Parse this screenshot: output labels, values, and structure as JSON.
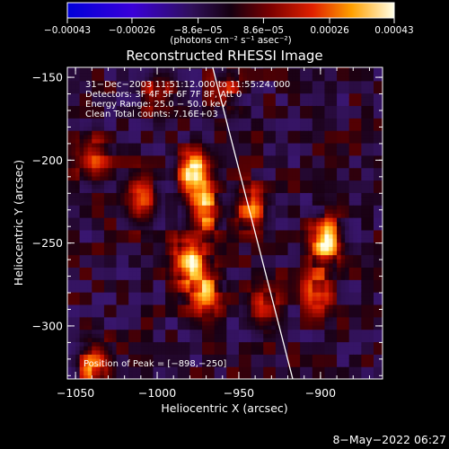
{
  "chart_data": {
    "type": "heatmap",
    "title": "Reconstructed RHESSI Image",
    "xlabel": "Heliocentric X (arcsec)",
    "ylabel": "Heliocentric Y (arcsec)",
    "xlim": [
      -1055,
      -862
    ],
    "ylim": [
      -332,
      -144
    ],
    "xticks": [
      -1050,
      -1000,
      -950,
      -900
    ],
    "xtick_labels": [
      "−1050",
      "−1000",
      "−950",
      "−900"
    ],
    "yticks": [
      -150,
      -200,
      -250,
      -300
    ],
    "ytick_labels": [
      "−150",
      "−200",
      "−250",
      "−300"
    ],
    "colorbar": {
      "range": [
        -0.00043,
        0.00043
      ],
      "ticks": [
        -0.00043,
        -0.00026,
        -8.6e-05,
        8.6e-05,
        0.00026,
        0.00043
      ],
      "tick_labels": [
        "−0.00043",
        "−0.00026",
        "−8.6e−05",
        "8.6e−05",
        "0.00026",
        "0.00043"
      ],
      "unit": "(photons cm⁻² s⁻¹ asec⁻²)"
    },
    "annotations": [
      "31−Dec−2003 11:51:12.000 to 11:55:24.000",
      "Detectors: 3F 4F 5F 6F 7F 8F, Att 0",
      "Energy Range: 25.0 − 50.0 keV",
      "Clean    Total counts: 7.16E+03"
    ],
    "peak": {
      "label": "Position of Peak = [−898,−250]",
      "x": -898,
      "y": -250
    },
    "limb_line": {
      "x": [
        -966,
        -917
      ],
      "y": [
        -144,
        -332
      ]
    },
    "sources": [
      {
        "x": -978,
        "y": -210,
        "strength": 1.0
      },
      {
        "x": -972,
        "y": -232,
        "strength": 0.75
      },
      {
        "x": -982,
        "y": -262,
        "strength": 0.95
      },
      {
        "x": -972,
        "y": -280,
        "strength": 0.7
      },
      {
        "x": -945,
        "y": -230,
        "strength": 0.6
      },
      {
        "x": -898,
        "y": -250,
        "strength": 1.0
      },
      {
        "x": -903,
        "y": -280,
        "strength": 0.5
      },
      {
        "x": -1040,
        "y": -200,
        "strength": 0.45
      },
      {
        "x": -1040,
        "y": -325,
        "strength": 0.65
      },
      {
        "x": -1010,
        "y": -225,
        "strength": 0.55
      },
      {
        "x": -1000,
        "y": -160,
        "strength": 0.4
      },
      {
        "x": -935,
        "y": -290,
        "strength": 0.4
      },
      {
        "x": -960,
        "y": -160,
        "strength": 0.35
      }
    ]
  },
  "footer": {
    "date": "8−May−2022 06:27"
  }
}
